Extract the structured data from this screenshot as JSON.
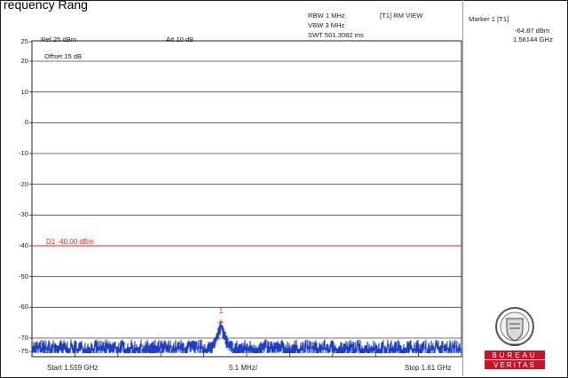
{
  "window": {
    "title": "requency Rang"
  },
  "header": {
    "ref": "Ref 25 dBm",
    "att": "Att  10 dB",
    "rbw": "RBW 1 MHz",
    "vbw": "VBW 3 MHz",
    "swt": "SWT 501.3082 ms",
    "trace_mode": "[T1] RM VIEW",
    "offset": "Offset 15 dB"
  },
  "marker": {
    "label": "Marker 1 [T1]",
    "level": "-64.87 dBm",
    "freq": "1.58144 GHz",
    "symbol": "1"
  },
  "display_line": {
    "label": "D1 -40.00 dBm",
    "level_dbm": -40,
    "color": "#e02020"
  },
  "axis": {
    "ytick_labels": [
      "25",
      "20",
      "10",
      "0",
      "-10",
      "-20",
      "-30",
      "-40",
      "-50",
      "-60",
      "-70",
      "-75"
    ],
    "start": "Start 1.559 GHz",
    "span_div": "5.1 MHz/",
    "stop": "Stop 1.61 GHz"
  },
  "trace": {
    "color": "#1f3fbf",
    "noise_floor_dbm": -72,
    "peak_dbm": -64.87,
    "peak_freq_ghz": 1.58144,
    "start_ghz": 1.559,
    "stop_ghz": 1.61
  },
  "logo": {
    "line1": "BUREAU",
    "line2": "VERITAS",
    "year": "1828",
    "color": "#c0182a"
  }
}
